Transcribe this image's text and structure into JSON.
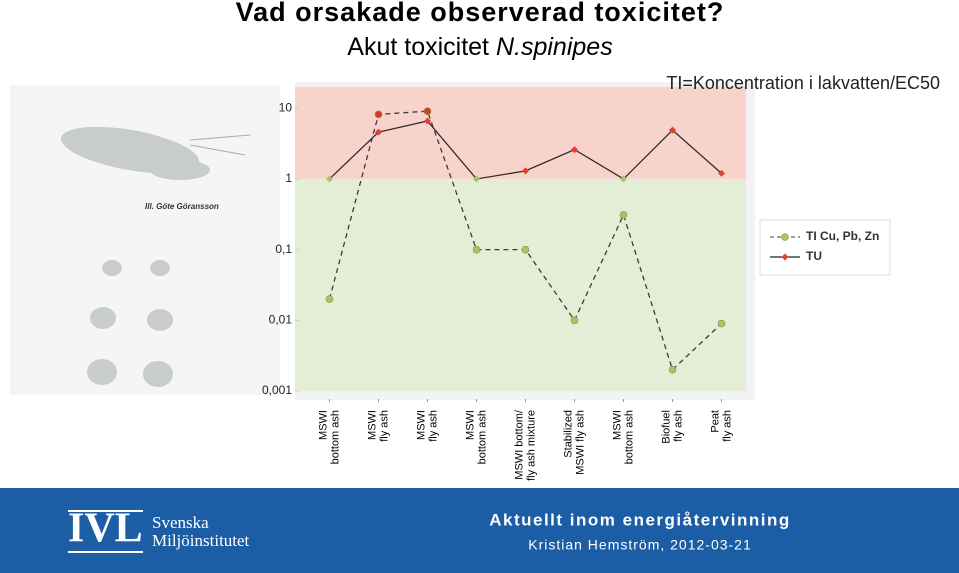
{
  "header": {
    "title": "Vad orsakade observerad toxicitet?",
    "subtitle": "Akut toxicitet",
    "subtitle_species": "N.spinipes",
    "illustration_credit": "Ill. Göte Göransson"
  },
  "chart_data": {
    "type": "line",
    "annotation": "TI=Koncentration i lakvatten/EC50",
    "categories": [
      [
        "MSWI",
        "bottom ash"
      ],
      [
        "MSWI",
        "fly ash"
      ],
      [
        "MSWI",
        "fly ash"
      ],
      [
        "MSWI",
        "bottom ash"
      ],
      [
        "MSWI bottom/",
        "fly ash mixture"
      ],
      [
        "Stabilized",
        "MSWI fly ash"
      ],
      [
        "MSWI",
        "bottom ash"
      ],
      [
        "Biofuel",
        "fly ash"
      ],
      [
        "Peat",
        "fly ash"
      ]
    ],
    "log_scale": true,
    "ylim": [
      0.001,
      20
    ],
    "yticks": [
      {
        "value": 0.001,
        "label": "0,001"
      },
      {
        "value": 0.01,
        "label": "0,01"
      },
      {
        "value": 0.1,
        "label": "0,1"
      },
      1,
      10
    ],
    "bands": [
      {
        "from": 1,
        "to": 20,
        "color": "#f8d3cc"
      },
      {
        "from": 0.001,
        "to": 1,
        "color": "#e4eed6"
      }
    ],
    "legend_position": "right",
    "series": [
      {
        "name": "TI Cu, Pb, Zn",
        "color": "#3a3a3a",
        "dashed": true,
        "marker": "circle",
        "values": [
          0.02,
          8.2,
          9.1,
          0.1,
          0.1,
          0.01,
          0.31,
          0.002,
          0.009
        ],
        "point_colors": [
          "#a6c46a",
          "#d23a2a",
          "#d23a2a",
          "#a6c46a",
          "#a6c46a",
          "#a6c46a",
          "#a6c46a",
          "#a6c46a",
          "#a6c46a"
        ]
      },
      {
        "name": "TU",
        "color": "#3a2a2a",
        "dashed": false,
        "marker": "diamond",
        "values": [
          1,
          4.6,
          6.6,
          1,
          1.3,
          2.6,
          1,
          4.9,
          1.2
        ],
        "point_colors": [
          "#a6c46a",
          "#e04030",
          "#e04030",
          "#a6c46a",
          "#e04030",
          "#e04030",
          "#a6c46a",
          "#e04030",
          "#e04030"
        ]
      }
    ]
  },
  "footer": {
    "logo": "IVL",
    "org_line1": "Svenska",
    "org_line2": "Miljöinstitutet",
    "event": "Aktuellt inom energiåtervinning",
    "byline": "Kristian Hemström, 2012-03-21"
  }
}
